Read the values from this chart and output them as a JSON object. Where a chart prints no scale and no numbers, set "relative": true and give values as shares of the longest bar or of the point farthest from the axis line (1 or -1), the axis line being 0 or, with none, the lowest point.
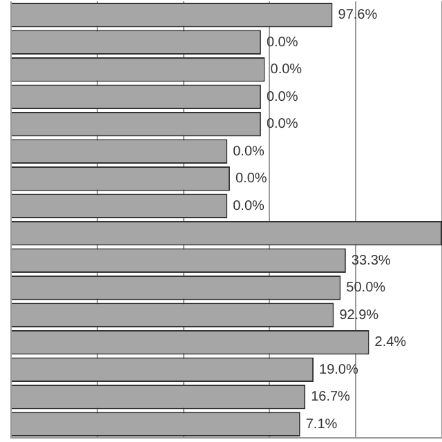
{
  "chart_data": {
    "type": "bar",
    "orientation": "horizontal",
    "relative": true,
    "grid": "x",
    "legend": false,
    "tick_labels": false,
    "categories": [
      null,
      null,
      null,
      null,
      null,
      null,
      null,
      null,
      null,
      null,
      null,
      null,
      null,
      null,
      null,
      null
    ],
    "values": [
      0.746,
      0.58,
      0.589,
      0.58,
      0.58,
      0.502,
      0.508,
      0.502,
      1,
      0.777,
      0.765,
      0.749,
      0.831,
      0.702,
      0.683,
      0.671
    ],
    "annotations": [
      {
        "text": "97.6%",
        "x": 0.746
      },
      {
        "text": "0.0%",
        "x": 0.58
      },
      {
        "text": "0.0%",
        "x": 0.589
      },
      {
        "text": "0.0%",
        "x": 0.58
      },
      {
        "text": "0.0%",
        "x": 0.58
      },
      {
        "text": "0.0%",
        "x": 0.502
      },
      {
        "text": "0.0%",
        "x": 0.508
      },
      {
        "text": "0.0%",
        "x": 0.502
      },
      {
        "text": "33.3%",
        "x": 0.777
      },
      {
        "text": "50.0%",
        "x": 0.765
      },
      {
        "text": "92.9%",
        "x": 0.749
      },
      {
        "text": "2.4%",
        "x": 0.831
      },
      {
        "text": "19.0%",
        "x": 0.702
      },
      {
        "text": "16.7%",
        "x": 0.683
      },
      {
        "text": "7.1%",
        "x": 0.671
      }
    ],
    "color": "#a6a6a6"
  }
}
